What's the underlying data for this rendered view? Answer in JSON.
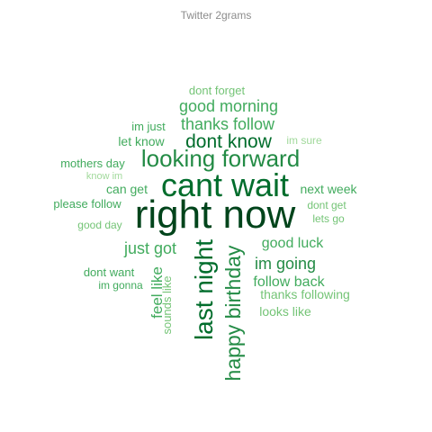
{
  "chart_data": {
    "type": "wordcloud",
    "title": "Twitter 2grams",
    "palette": [
      "#a1d99b",
      "#74c476",
      "#41ab5d",
      "#238b45",
      "#006d2c",
      "#00441b"
    ],
    "words": [
      {
        "text": "right now",
        "weight": 10
      },
      {
        "text": "cant wait",
        "weight": 8
      },
      {
        "text": "last night",
        "weight": 6
      },
      {
        "text": "happy birthday",
        "weight": 5.5
      },
      {
        "text": "looking forward",
        "weight": 5.5
      },
      {
        "text": "dont know",
        "weight": 5
      },
      {
        "text": "good morning",
        "weight": 4
      },
      {
        "text": "thanks follow",
        "weight": 4
      },
      {
        "text": "im going",
        "weight": 4
      },
      {
        "text": "just got",
        "weight": 4
      },
      {
        "text": "feel like",
        "weight": 3.5
      },
      {
        "text": "follow back",
        "weight": 3.5
      },
      {
        "text": "good luck",
        "weight": 3.5
      },
      {
        "text": "thanks following",
        "weight": 3
      },
      {
        "text": "next week",
        "weight": 3
      },
      {
        "text": "let know",
        "weight": 3
      },
      {
        "text": "can get",
        "weight": 3
      },
      {
        "text": "looks like",
        "weight": 3
      },
      {
        "text": "mothers day",
        "weight": 3
      },
      {
        "text": "dont want",
        "weight": 3
      },
      {
        "text": "please follow",
        "weight": 3
      },
      {
        "text": "im just",
        "weight": 2.5
      },
      {
        "text": "dont forget",
        "weight": 2.5
      },
      {
        "text": "dont get",
        "weight": 2.5
      },
      {
        "text": "lets go",
        "weight": 2.5
      },
      {
        "text": "good day",
        "weight": 2.5
      },
      {
        "text": "im gonna",
        "weight": 2.5
      },
      {
        "text": "sounds like",
        "weight": 2.5
      },
      {
        "text": "im sure",
        "weight": 2
      },
      {
        "text": "know im",
        "weight": 2
      }
    ]
  }
}
